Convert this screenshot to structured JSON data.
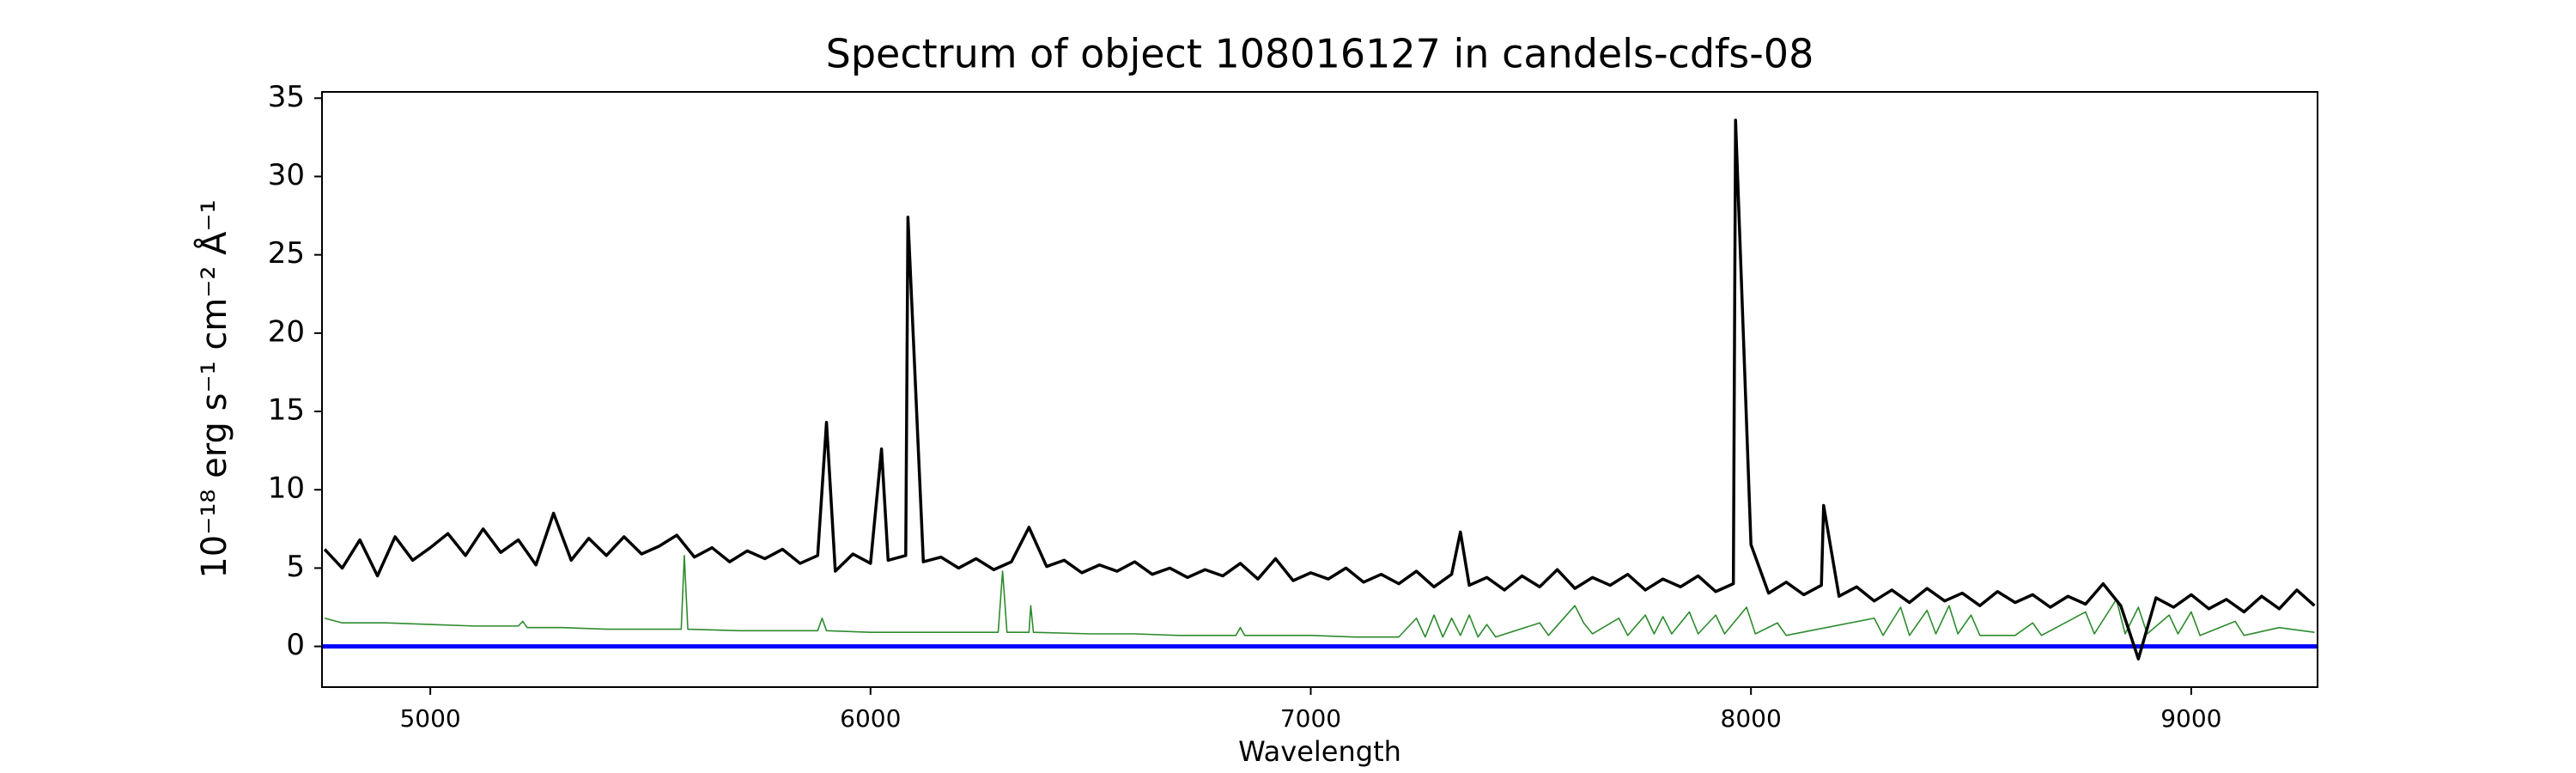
{
  "chart_data": {
    "type": "line",
    "title": "Spectrum of object 108016127 in candels-cdfs-08",
    "x_label": "Wavelength",
    "y_label": "10⁻¹⁸ erg s⁻¹ cm⁻² Å⁻¹",
    "xlim": [
      4754,
      9287
    ],
    "ylim": [
      -2.6,
      35.4
    ],
    "xticks": [
      5000,
      6000,
      7000,
      8000,
      9000
    ],
    "yticks": [
      0,
      5,
      10,
      15,
      20,
      25,
      30,
      35
    ],
    "grid": false,
    "series": [
      {
        "color": "#2e8b2e",
        "line_width": 1.6,
        "x": [
          4760,
          4800,
          4900,
          5000,
          5100,
          5200,
          5210,
          5220,
          5300,
          5400,
          5500,
          5570,
          5577,
          5585,
          5700,
          5800,
          5880,
          5890,
          5900,
          6000,
          6100,
          6200,
          6290,
          6300,
          6310,
          6360,
          6364,
          6370,
          6500,
          6600,
          6700,
          6830,
          6840,
          6850,
          7000,
          7100,
          7200,
          7240,
          7260,
          7280,
          7300,
          7320,
          7340,
          7360,
          7380,
          7400,
          7420,
          7520,
          7540,
          7600,
          7620,
          7640,
          7700,
          7720,
          7760,
          7780,
          7800,
          7820,
          7860,
          7880,
          7920,
          7940,
          7990,
          8010,
          8060,
          8080,
          8280,
          8300,
          8340,
          8360,
          8400,
          8420,
          8450,
          8470,
          8500,
          8520,
          8600,
          8640,
          8660,
          8760,
          8780,
          8830,
          8850,
          8880,
          8900,
          8950,
          8970,
          9000,
          9020,
          9100,
          9120,
          9200,
          9280
        ],
        "values": [
          1.8,
          1.5,
          1.5,
          1.4,
          1.3,
          1.3,
          1.6,
          1.2,
          1.2,
          1.1,
          1.1,
          1.1,
          5.8,
          1.1,
          1.0,
          1.0,
          1.0,
          1.8,
          1.0,
          0.9,
          0.9,
          0.9,
          0.9,
          4.8,
          0.9,
          0.9,
          2.6,
          0.9,
          0.8,
          0.8,
          0.7,
          0.7,
          1.2,
          0.7,
          0.7,
          0.6,
          0.6,
          1.8,
          0.6,
          2.0,
          0.6,
          1.8,
          0.7,
          2.0,
          0.6,
          1.4,
          0.6,
          1.5,
          0.7,
          2.6,
          1.5,
          0.8,
          1.8,
          0.7,
          2.0,
          0.8,
          1.9,
          0.8,
          2.2,
          0.8,
          2.0,
          0.8,
          2.5,
          0.8,
          1.5,
          0.7,
          1.8,
          0.7,
          2.5,
          0.7,
          2.3,
          0.8,
          2.6,
          0.8,
          2.0,
          0.7,
          0.7,
          1.5,
          0.7,
          2.2,
          0.8,
          3.0,
          0.8,
          2.5,
          0.8,
          2.0,
          0.8,
          2.2,
          0.7,
          1.6,
          0.7,
          1.2,
          0.9
        ]
      },
      {
        "color": "#0000ff",
        "line_width": 5,
        "x": [
          4754,
          9287
        ],
        "values": [
          0,
          0
        ]
      },
      {
        "color": "#000000",
        "line_width": 3.5,
        "x": [
          4760,
          4800,
          4840,
          4880,
          4920,
          4960,
          5000,
          5040,
          5080,
          5120,
          5160,
          5200,
          5240,
          5280,
          5320,
          5360,
          5400,
          5440,
          5480,
          5520,
          5560,
          5600,
          5640,
          5680,
          5720,
          5760,
          5800,
          5840,
          5880,
          5900,
          5920,
          5960,
          6000,
          6025,
          6040,
          6080,
          6085,
          6120,
          6160,
          6200,
          6240,
          6280,
          6320,
          6360,
          6400,
          6440,
          6480,
          6520,
          6560,
          6600,
          6640,
          6680,
          6720,
          6760,
          6800,
          6840,
          6880,
          6920,
          6960,
          7000,
          7040,
          7080,
          7120,
          7160,
          7200,
          7240,
          7280,
          7320,
          7340,
          7360,
          7400,
          7440,
          7480,
          7520,
          7560,
          7600,
          7640,
          7680,
          7720,
          7760,
          7800,
          7840,
          7880,
          7920,
          7960,
          7965,
          8000,
          8040,
          8080,
          8120,
          8160,
          8165,
          8200,
          8240,
          8280,
          8320,
          8360,
          8400,
          8440,
          8480,
          8520,
          8560,
          8600,
          8640,
          8680,
          8720,
          8760,
          8800,
          8840,
          8880,
          8920,
          8960,
          9000,
          9040,
          9080,
          9120,
          9160,
          9200,
          9240,
          9280
        ],
        "values": [
          6.2,
          5.0,
          6.8,
          4.5,
          7.0,
          5.5,
          6.3,
          7.2,
          5.8,
          7.5,
          6.0,
          6.8,
          5.2,
          8.5,
          5.5,
          6.9,
          5.8,
          7.0,
          5.9,
          6.4,
          7.1,
          5.7,
          6.3,
          5.4,
          6.1,
          5.6,
          6.2,
          5.3,
          5.8,
          14.3,
          4.8,
          5.9,
          5.3,
          12.6,
          5.5,
          5.8,
          27.4,
          5.4,
          5.7,
          5.0,
          5.6,
          4.9,
          5.4,
          7.6,
          5.1,
          5.5,
          4.7,
          5.2,
          4.8,
          5.4,
          4.6,
          5.0,
          4.4,
          4.9,
          4.5,
          5.3,
          4.3,
          5.6,
          4.2,
          4.7,
          4.3,
          5.0,
          4.1,
          4.6,
          4.0,
          4.8,
          3.8,
          4.6,
          7.3,
          3.9,
          4.4,
          3.6,
          4.5,
          3.8,
          4.9,
          3.7,
          4.4,
          3.9,
          4.6,
          3.6,
          4.3,
          3.8,
          4.5,
          3.5,
          4.0,
          33.6,
          6.5,
          3.4,
          4.1,
          3.3,
          3.9,
          9.0,
          3.2,
          3.8,
          2.9,
          3.6,
          2.8,
          3.7,
          2.9,
          3.4,
          2.6,
          3.5,
          2.8,
          3.3,
          2.5,
          3.2,
          2.7,
          4.0,
          2.6,
          -0.8,
          3.1,
          2.5,
          3.3,
          2.4,
          3.0,
          2.2,
          3.2,
          2.4,
          3.6,
          2.6
        ]
      }
    ]
  }
}
